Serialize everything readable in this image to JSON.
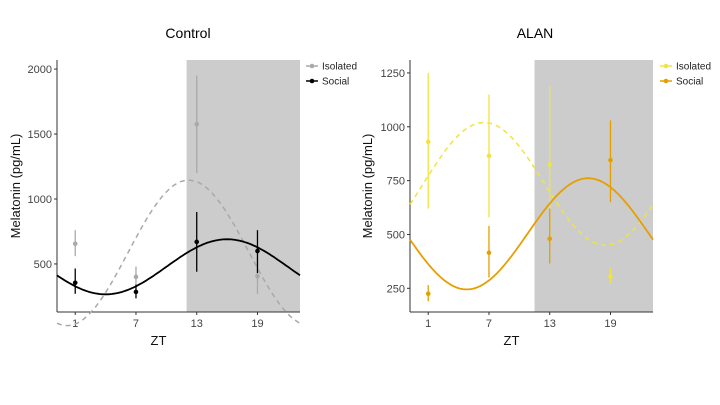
{
  "chart_data": [
    {
      "type": "scatter",
      "title": "Control",
      "xlabel": "ZT",
      "ylabel": "Melatonin (pg/mL)",
      "xlim": [
        -0.8,
        23.2
      ],
      "ylim": [
        130,
        2070
      ],
      "xticks": [
        1,
        7,
        13,
        19
      ],
      "yticks": [
        500,
        1000,
        1500,
        2000
      ],
      "shaded_region": [
        12,
        23.2
      ],
      "grid": false,
      "legend": "top-right",
      "series": [
        {
          "name": "Isolated",
          "color": "#a9a9a9",
          "dashed": true,
          "points": [
            {
              "x": 1,
              "y": 655,
              "lo": 560,
              "hi": 760
            },
            {
              "x": 7,
              "y": 400,
              "lo": 320,
              "hi": 480
            },
            {
              "x": 13,
              "y": 1575,
              "lo": 1200,
              "hi": 1950
            },
            {
              "x": 19,
              "y": 405,
              "lo": 270,
              "hi": 540
            }
          ],
          "curve": {
            "mesor": 585,
            "amplitude": 560,
            "acrophase": 12.2,
            "period": 24
          }
        },
        {
          "name": "Social",
          "color": "#000000",
          "dashed": false,
          "points": [
            {
              "x": 1,
              "y": 355,
              "lo": 270,
              "hi": 465
            },
            {
              "x": 7,
              "y": 285,
              "lo": 235,
              "hi": 340
            },
            {
              "x": 13,
              "y": 670,
              "lo": 440,
              "hi": 900
            },
            {
              "x": 19,
              "y": 600,
              "lo": 430,
              "hi": 760
            }
          ],
          "curve": {
            "mesor": 478,
            "amplitude": 212,
            "acrophase": 16.0,
            "period": 24
          }
        }
      ]
    },
    {
      "type": "scatter",
      "title": "ALAN",
      "xlabel": "ZT",
      "ylabel": "Melatonin (pg/mL)",
      "xlim": [
        -0.8,
        23.2
      ],
      "ylim": [
        140,
        1310
      ],
      "xticks": [
        1,
        7,
        13,
        19
      ],
      "yticks": [
        250,
        500,
        750,
        1000,
        1250
      ],
      "shaded_region": [
        11.5,
        23.2
      ],
      "grid": false,
      "legend": "top-right",
      "series": [
        {
          "name": "Isolated",
          "color": "#f0e442",
          "dashed": true,
          "points": [
            {
              "x": 1,
              "y": 930,
              "lo": 620,
              "hi": 1250
            },
            {
              "x": 7,
              "y": 865,
              "lo": 580,
              "hi": 1150
            },
            {
              "x": 13,
              "y": 825,
              "lo": 470,
              "hi": 1190
            },
            {
              "x": 19,
              "y": 305,
              "lo": 270,
              "hi": 345
            }
          ],
          "curve": {
            "mesor": 735,
            "amplitude": 285,
            "acrophase": 6.5,
            "period": 24
          }
        },
        {
          "name": "Social",
          "color": "#e69f00",
          "dashed": false,
          "points": [
            {
              "x": 1,
              "y": 225,
              "lo": 190,
              "hi": 265
            },
            {
              "x": 7,
              "y": 415,
              "lo": 300,
              "hi": 540
            },
            {
              "x": 13,
              "y": 480,
              "lo": 365,
              "hi": 620
            },
            {
              "x": 19,
              "y": 845,
              "lo": 650,
              "hi": 1030
            }
          ],
          "curve": {
            "mesor": 503,
            "amplitude": 258,
            "acrophase": 16.8,
            "period": 24
          }
        }
      ]
    }
  ]
}
